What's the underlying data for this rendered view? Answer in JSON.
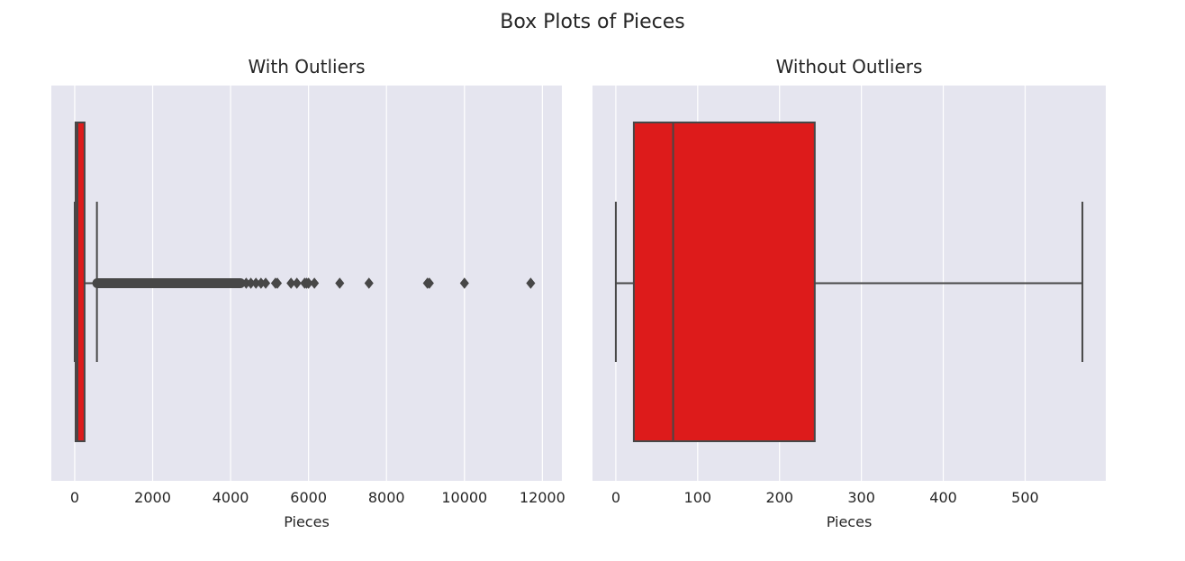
{
  "figure": {
    "suptitle": "Box Plots of Pieces"
  },
  "colors": {
    "panel_bg": "#e5e5ef",
    "grid": "#ffffff",
    "box_fill": "#dd1b1b",
    "line": "#474747",
    "text": "#262626"
  },
  "chart_data": [
    {
      "type": "box",
      "title": "With Outliers",
      "xlabel": "Pieces",
      "ylabel": "",
      "orientation": "horizontal",
      "grid": "vertical",
      "xlim": [
        -600,
        12500
      ],
      "ticks": [
        0,
        2000,
        4000,
        6000,
        8000,
        10000,
        12000
      ],
      "tick_labels": [
        "0",
        "2000",
        "4000",
        "6000",
        "8000",
        "10000",
        "12000"
      ],
      "box": {
        "whisker_low": 0,
        "q1": 22,
        "median": 70,
        "q3": 243,
        "whisker_high": 570
      },
      "outlier_band": [
        580,
        4250
      ],
      "outliers": [
        4400,
        4520,
        4650,
        4780,
        4900,
        5150,
        5200,
        5550,
        5700,
        5900,
        5950,
        6000,
        6150,
        6800,
        7550,
        9050,
        9100,
        10000,
        11700
      ]
    },
    {
      "type": "box",
      "title": "Without Outliers",
      "xlabel": "Pieces",
      "ylabel": "",
      "orientation": "horizontal",
      "grid": "vertical",
      "xlim": [
        -28.5,
        598.5
      ],
      "ticks": [
        0,
        100,
        200,
        300,
        400,
        500
      ],
      "tick_labels": [
        "0",
        "100",
        "200",
        "300",
        "400",
        "500"
      ],
      "box": {
        "whisker_low": 0,
        "q1": 22,
        "median": 70,
        "q3": 243,
        "whisker_high": 570
      },
      "outliers": []
    }
  ]
}
